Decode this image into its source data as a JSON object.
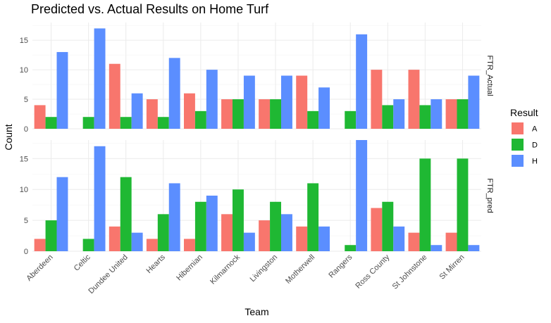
{
  "chart_data": {
    "type": "bar",
    "title": "Predicted vs. Actual Results on Home Turf",
    "xlabel": "Team",
    "ylabel": "Count",
    "categories": [
      "Aberdeen",
      "Celtic",
      "Dundee United",
      "Hearts",
      "Hibernian",
      "Kilmarnock",
      "Livingston",
      "Motherwell",
      "Rangers",
      "Ross County",
      "St Johnstone",
      "St Mirren"
    ],
    "legend": {
      "title": "Result",
      "position": "right",
      "entries": [
        {
          "key": "A",
          "color": "#F8766D"
        },
        {
          "key": "D",
          "color": "#1FB833"
        },
        {
          "key": "H",
          "color": "#5B8EFF"
        }
      ]
    },
    "grid": true,
    "panels": [
      {
        "label": "FTR_Actual",
        "ylim": [
          0,
          18
        ],
        "yticks": [
          0,
          5,
          10,
          15
        ],
        "series": [
          {
            "name": "A",
            "values": [
              4,
              0,
              11,
              5,
              6,
              5,
              5,
              9,
              0,
              10,
              10,
              5
            ]
          },
          {
            "name": "D",
            "values": [
              2,
              2,
              2,
              2,
              3,
              5,
              5,
              3,
              3,
              4,
              4,
              5
            ]
          },
          {
            "name": "H",
            "values": [
              13,
              17,
              6,
              12,
              10,
              9,
              9,
              7,
              16,
              5,
              5,
              9
            ]
          }
        ]
      },
      {
        "label": "FTR_pred",
        "ylim": [
          0,
          18
        ],
        "yticks": [
          0,
          5,
          10,
          15
        ],
        "series": [
          {
            "name": "A",
            "values": [
              2,
              0,
              4,
              2,
              2,
              6,
              5,
              4,
              0,
              7,
              3,
              3
            ]
          },
          {
            "name": "D",
            "values": [
              5,
              2,
              12,
              6,
              8,
              10,
              8,
              11,
              1,
              8,
              15,
              15
            ]
          },
          {
            "name": "H",
            "values": [
              12,
              17,
              3,
              11,
              9,
              3,
              6,
              4,
              18,
              4,
              1,
              1
            ]
          }
        ]
      }
    ]
  }
}
